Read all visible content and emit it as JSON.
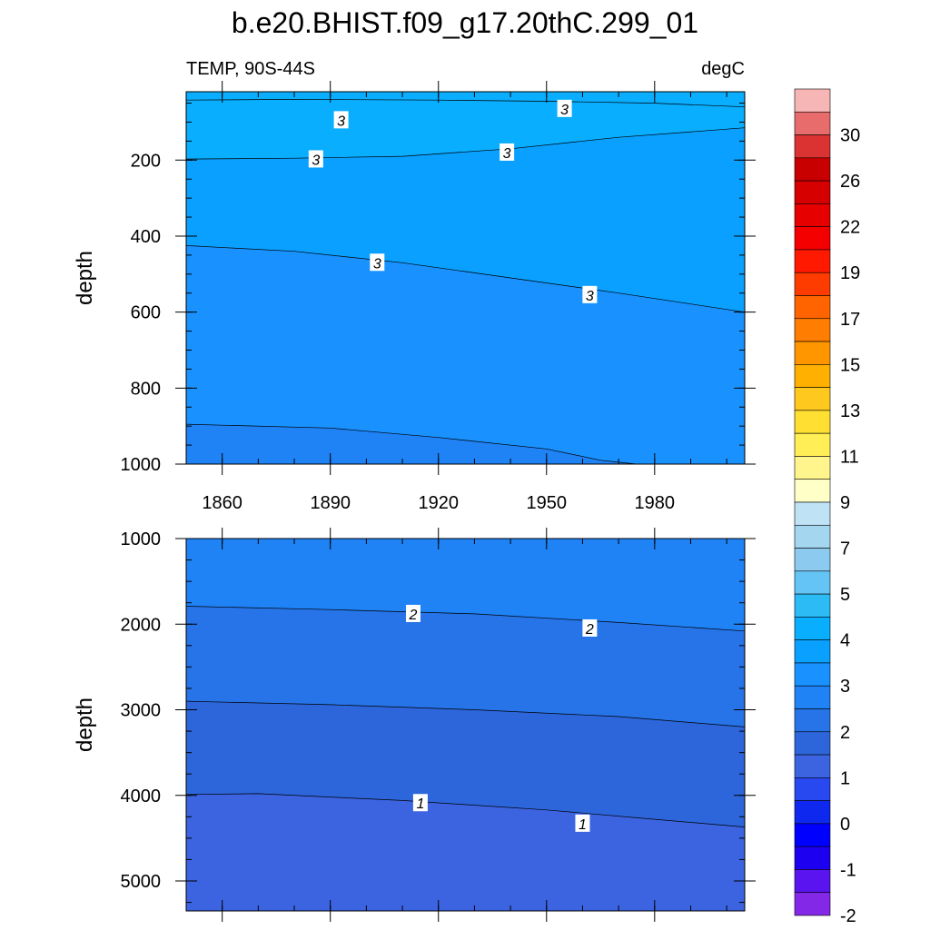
{
  "title": "b.e20.BHIST.f09_g17.20thC.299_01",
  "chart_data": {
    "type": "contour",
    "variable_label": "TEMP, 90S-44S",
    "units_label": "degC",
    "x_ticks": [
      1860,
      1890,
      1920,
      1950,
      1980
    ],
    "xlim": [
      1850,
      2005
    ],
    "colorbar": {
      "labels": [
        "30",
        "26",
        "22",
        "19",
        "17",
        "15",
        "13",
        "11",
        "9",
        "7",
        "5",
        "4",
        "3",
        "2",
        "1",
        "0",
        "-1",
        "-2"
      ],
      "colors": [
        "#f7b6b6",
        "#e86c6c",
        "#db3232",
        "#c80000",
        "#d70000",
        "#e60000",
        "#f50000",
        "#ff1900",
        "#ff3c00",
        "#ff6400",
        "#ff7d00",
        "#ff9600",
        "#ffb000",
        "#ffc81e",
        "#ffdf32",
        "#ffee55",
        "#fff58c",
        "#ffffc8",
        "#bfe3f5",
        "#a5d6f0",
        "#8ccbef",
        "#63c4f5",
        "#2dbbf5",
        "#0aaeff",
        "#0aa0ff",
        "#1992ff",
        "#1f82f5",
        "#2674e8",
        "#2d66db",
        "#3c64e1",
        "#2848f0",
        "#0f28f0",
        "#0000ff",
        "#1e00f0",
        "#5a14f0",
        "#8228e6"
      ]
    },
    "panels": [
      {
        "ylabel": "depth",
        "ylim": [
          20,
          1000
        ],
        "y_ticks": [
          200,
          400,
          600,
          800,
          1000
        ],
        "bands": [
          {
            "color": "#0aaeff",
            "boundary": [
              [
                1850,
                42
              ],
              [
                1880,
                40
              ],
              [
                1920,
                42
              ],
              [
                1950,
                45
              ],
              [
                1980,
                50
              ],
              [
                2005,
                60
              ]
            ]
          },
          {
            "color": "#0aa0ff",
            "boundary": [
              [
                1850,
                197
              ],
              [
                1880,
                195
              ],
              [
                1910,
                190
              ],
              [
                1940,
                170
              ],
              [
                1970,
                140
              ],
              [
                2005,
                115
              ]
            ]
          },
          {
            "color": "#1992ff",
            "boundary": [
              [
                1850,
                425
              ],
              [
                1880,
                440
              ],
              [
                1910,
                470
              ],
              [
                1940,
                510
              ],
              [
                1970,
                550
              ],
              [
                2005,
                600
              ]
            ]
          },
          {
            "color": "#1f82f5",
            "boundary": [
              [
                1850,
                895
              ],
              [
                1890,
                905
              ],
              [
                1920,
                930
              ],
              [
                1950,
                960
              ],
              [
                1965,
                990
              ],
              [
                1975,
                1000
              ]
            ]
          }
        ],
        "contour_labels": [
          {
            "text": "3",
            "x": 1893,
            "y": 95
          },
          {
            "text": "3",
            "x": 1955,
            "y": 65
          },
          {
            "text": "3",
            "x": 1886,
            "y": 198
          },
          {
            "text": "3",
            "x": 1939,
            "y": 180
          },
          {
            "text": "3",
            "x": 1903,
            "y": 470
          },
          {
            "text": "3",
            "x": 1962,
            "y": 555
          }
        ]
      },
      {
        "ylabel": "depth",
        "ylim": [
          1000,
          5350
        ],
        "y_ticks": [
          1000,
          2000,
          3000,
          4000,
          5000
        ],
        "bands": [
          {
            "color": "#1f82f5",
            "boundary": [
              [
                1850,
                1000
              ],
              [
                2005,
                1000
              ]
            ]
          },
          {
            "color": "#2674e8",
            "boundary": [
              [
                1850,
                1790
              ],
              [
                1890,
                1830
              ],
              [
                1930,
                1880
              ],
              [
                1970,
                1980
              ],
              [
                2005,
                2080
              ]
            ]
          },
          {
            "color": "#2d66db",
            "boundary": [
              [
                1850,
                2900
              ],
              [
                1890,
                2940
              ],
              [
                1930,
                3000
              ],
              [
                1970,
                3080
              ],
              [
                2005,
                3200
              ]
            ]
          },
          {
            "color": "#3c64e1",
            "boundary": [
              [
                1850,
                3990
              ],
              [
                1870,
                3980
              ],
              [
                1910,
                4060
              ],
              [
                1950,
                4170
              ],
              [
                1980,
                4280
              ],
              [
                2005,
                4370
              ]
            ]
          }
        ],
        "contour_labels": [
          {
            "text": "2",
            "x": 1913,
            "y": 1880
          },
          {
            "text": "2",
            "x": 1962,
            "y": 2050
          },
          {
            "text": "1",
            "x": 1915,
            "y": 4090
          },
          {
            "text": "1",
            "x": 1960,
            "y": 4330
          }
        ]
      }
    ]
  }
}
